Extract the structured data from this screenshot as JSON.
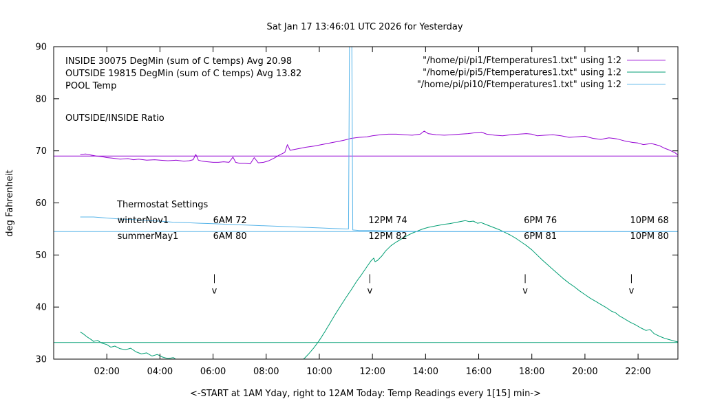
{
  "chart_data": {
    "type": "line",
    "title": "Sat Jan 17 13:46:01 UTC 2026 for Yesterday",
    "xlabel": "<-START at 1AM Yday, right to 12AM Today:  Temp Readings every 1[15] min->",
    "ylabel": "deg Fahrenheit",
    "xlim": [
      0,
      23.5
    ],
    "ylim": [
      30,
      90
    ],
    "grid": false,
    "legend_position": "top-right",
    "xticks": [
      {
        "v": 2,
        "label": "02:00"
      },
      {
        "v": 4,
        "label": "04:00"
      },
      {
        "v": 6,
        "label": "06:00"
      },
      {
        "v": 8,
        "label": "08:00"
      },
      {
        "v": 10,
        "label": "10:00"
      },
      {
        "v": 12,
        "label": "12:00"
      },
      {
        "v": 14,
        "label": "14:00"
      },
      {
        "v": 16,
        "label": "16:00"
      },
      {
        "v": 18,
        "label": "18:00"
      },
      {
        "v": 20,
        "label": "20:00"
      },
      {
        "v": 22,
        "label": "22:00"
      }
    ],
    "yticks": [
      30,
      40,
      50,
      60,
      70,
      80,
      90
    ],
    "colors": {
      "inside": "#9400d3",
      "outside": "#009e73",
      "pool": "#56b4e9",
      "text": "#000000"
    },
    "info_labels": {
      "inside": "INSIDE 30075 DegMin (sum of C temps) Avg 20.98",
      "outside": "OUTSIDE 19815 DegMin (sum of C temps) Avg 13.82",
      "pool": "POOL Temp",
      "ratio": "OUTSIDE/INSIDE Ratio"
    },
    "legend": [
      {
        "label": "\"/home/pi/pi1/Ftemperatures1.txt\" using 1:2",
        "color": "#9400d3"
      },
      {
        "label": "\"/home/pi/pi5/Ftemperatures1.txt\" using 1:2",
        "color": "#009e73"
      },
      {
        "label": "\"/home/pi/pi10/Ftemperatures1.txt\" using 1:2",
        "color": "#56b4e9"
      }
    ],
    "thermostat": {
      "heading": "Thermostat Settings",
      "rows": [
        {
          "name": "winterNov1",
          "y": 56.7,
          "cells": [
            "6AM 72",
            "12PM 74",
            "6PM 76",
            "10PM 68"
          ]
        },
        {
          "name": "summerMay1",
          "y": 53.7,
          "cells": [
            "6AM 80",
            "12PM 82",
            "6PM 81",
            "10PM 80"
          ]
        }
      ],
      "name_x": 2.4,
      "col_x": [
        6.0,
        11.85,
        17.7,
        21.7
      ]
    },
    "arrow_x": [
      6.05,
      11.9,
      17.75,
      21.75
    ],
    "series": [
      {
        "name": "INSIDE",
        "color": "#9400d3",
        "points": [
          [
            1.0,
            69.3
          ],
          [
            1.2,
            69.4
          ],
          [
            1.4,
            69.2
          ],
          [
            1.6,
            69.0
          ],
          [
            1.8,
            68.9
          ],
          [
            2.0,
            68.7
          ],
          [
            2.2,
            68.6
          ],
          [
            2.5,
            68.4
          ],
          [
            2.8,
            68.5
          ],
          [
            3.0,
            68.3
          ],
          [
            3.2,
            68.4
          ],
          [
            3.5,
            68.2
          ],
          [
            3.8,
            68.3
          ],
          [
            4.0,
            68.2
          ],
          [
            4.3,
            68.1
          ],
          [
            4.6,
            68.2
          ],
          [
            4.9,
            68.0
          ],
          [
            5.1,
            68.1
          ],
          [
            5.25,
            68.3
          ],
          [
            5.35,
            69.3
          ],
          [
            5.45,
            68.2
          ],
          [
            5.6,
            68.0
          ],
          [
            5.8,
            67.9
          ],
          [
            6.0,
            67.8
          ],
          [
            6.2,
            67.8
          ],
          [
            6.4,
            67.9
          ],
          [
            6.6,
            67.8
          ],
          [
            6.75,
            68.8
          ],
          [
            6.85,
            67.8
          ],
          [
            7.0,
            67.6
          ],
          [
            7.2,
            67.6
          ],
          [
            7.4,
            67.5
          ],
          [
            7.55,
            68.7
          ],
          [
            7.7,
            67.7
          ],
          [
            7.9,
            67.8
          ],
          [
            8.1,
            68.1
          ],
          [
            8.3,
            68.6
          ],
          [
            8.5,
            69.2
          ],
          [
            8.7,
            69.7
          ],
          [
            8.8,
            71.2
          ],
          [
            8.9,
            70.1
          ],
          [
            9.1,
            70.3
          ],
          [
            9.3,
            70.5
          ],
          [
            9.5,
            70.7
          ],
          [
            9.8,
            70.9
          ],
          [
            10.0,
            71.1
          ],
          [
            10.3,
            71.4
          ],
          [
            10.6,
            71.7
          ],
          [
            10.9,
            72.0
          ],
          [
            11.2,
            72.4
          ],
          [
            11.5,
            72.6
          ],
          [
            11.8,
            72.7
          ],
          [
            12.0,
            72.9
          ],
          [
            12.3,
            73.1
          ],
          [
            12.6,
            73.2
          ],
          [
            12.9,
            73.2
          ],
          [
            13.2,
            73.1
          ],
          [
            13.5,
            73.0
          ],
          [
            13.8,
            73.2
          ],
          [
            13.95,
            73.8
          ],
          [
            14.1,
            73.3
          ],
          [
            14.4,
            73.1
          ],
          [
            14.7,
            73.0
          ],
          [
            15.0,
            73.1
          ],
          [
            15.3,
            73.2
          ],
          [
            15.6,
            73.3
          ],
          [
            15.9,
            73.5
          ],
          [
            16.1,
            73.6
          ],
          [
            16.3,
            73.2
          ],
          [
            16.6,
            73.0
          ],
          [
            16.9,
            72.9
          ],
          [
            17.2,
            73.1
          ],
          [
            17.5,
            73.2
          ],
          [
            17.8,
            73.3
          ],
          [
            18.0,
            73.2
          ],
          [
            18.2,
            72.9
          ],
          [
            18.5,
            73.0
          ],
          [
            18.8,
            73.1
          ],
          [
            19.1,
            72.9
          ],
          [
            19.4,
            72.6
          ],
          [
            19.7,
            72.7
          ],
          [
            20.0,
            72.8
          ],
          [
            20.3,
            72.4
          ],
          [
            20.6,
            72.2
          ],
          [
            20.9,
            72.5
          ],
          [
            21.2,
            72.3
          ],
          [
            21.5,
            71.9
          ],
          [
            21.8,
            71.6
          ],
          [
            22.0,
            71.5
          ],
          [
            22.2,
            71.2
          ],
          [
            22.5,
            71.4
          ],
          [
            22.8,
            71.0
          ],
          [
            23.0,
            70.5
          ],
          [
            23.2,
            70.1
          ],
          [
            23.4,
            69.6
          ],
          [
            23.5,
            69.2
          ]
        ]
      },
      {
        "name": "OUTSIDE",
        "color": "#009e73",
        "points": [
          [
            1.0,
            35.2
          ],
          [
            1.1,
            34.9
          ],
          [
            1.25,
            34.3
          ],
          [
            1.4,
            33.8
          ],
          [
            1.5,
            33.4
          ],
          [
            1.65,
            33.6
          ],
          [
            1.8,
            33.1
          ],
          [
            2.0,
            32.8
          ],
          [
            2.15,
            32.3
          ],
          [
            2.3,
            32.5
          ],
          [
            2.5,
            32.0
          ],
          [
            2.7,
            31.8
          ],
          [
            2.9,
            32.1
          ],
          [
            3.1,
            31.4
          ],
          [
            3.3,
            31.0
          ],
          [
            3.5,
            31.2
          ],
          [
            3.7,
            30.6
          ],
          [
            3.9,
            30.9
          ],
          [
            4.1,
            30.4
          ],
          [
            4.3,
            30.1
          ],
          [
            4.5,
            30.3
          ],
          [
            4.65,
            29.8
          ],
          [
            4.8,
            29.5
          ],
          [
            5.0,
            29.7
          ],
          [
            5.3,
            29.1
          ],
          [
            5.7,
            28.7
          ],
          [
            6.2,
            28.4
          ],
          [
            6.8,
            28.1
          ],
          [
            7.4,
            28.0
          ],
          [
            8.0,
            28.3
          ],
          [
            8.6,
            28.6
          ],
          [
            9.0,
            29.0
          ],
          [
            9.3,
            29.6
          ],
          [
            9.45,
            30.2
          ],
          [
            9.6,
            31.0
          ],
          [
            9.8,
            32.2
          ],
          [
            10.0,
            33.6
          ],
          [
            10.2,
            35.2
          ],
          [
            10.4,
            36.9
          ],
          [
            10.6,
            38.6
          ],
          [
            10.8,
            40.2
          ],
          [
            11.0,
            41.8
          ],
          [
            11.2,
            43.3
          ],
          [
            11.4,
            44.9
          ],
          [
            11.6,
            46.3
          ],
          [
            11.8,
            47.8
          ],
          [
            11.95,
            48.9
          ],
          [
            12.05,
            49.4
          ],
          [
            12.1,
            48.7
          ],
          [
            12.2,
            49.0
          ],
          [
            12.35,
            49.8
          ],
          [
            12.5,
            50.8
          ],
          [
            12.7,
            51.8
          ],
          [
            12.9,
            52.5
          ],
          [
            13.1,
            53.1
          ],
          [
            13.3,
            53.7
          ],
          [
            13.5,
            54.2
          ],
          [
            13.7,
            54.6
          ],
          [
            13.9,
            55.0
          ],
          [
            14.1,
            55.3
          ],
          [
            14.3,
            55.5
          ],
          [
            14.5,
            55.7
          ],
          [
            14.7,
            55.9
          ],
          [
            14.9,
            56.0
          ],
          [
            15.1,
            56.2
          ],
          [
            15.3,
            56.4
          ],
          [
            15.5,
            56.6
          ],
          [
            15.65,
            56.4
          ],
          [
            15.8,
            56.5
          ],
          [
            15.95,
            56.1
          ],
          [
            16.1,
            56.2
          ],
          [
            16.25,
            55.9
          ],
          [
            16.4,
            55.6
          ],
          [
            16.6,
            55.2
          ],
          [
            16.8,
            54.8
          ],
          [
            17.0,
            54.3
          ],
          [
            17.2,
            53.8
          ],
          [
            17.4,
            53.2
          ],
          [
            17.6,
            52.5
          ],
          [
            17.8,
            51.8
          ],
          [
            18.0,
            51.0
          ],
          [
            18.2,
            50.0
          ],
          [
            18.4,
            49.0
          ],
          [
            18.6,
            48.1
          ],
          [
            18.8,
            47.2
          ],
          [
            19.0,
            46.3
          ],
          [
            19.2,
            45.4
          ],
          [
            19.4,
            44.6
          ],
          [
            19.6,
            43.9
          ],
          [
            19.8,
            43.1
          ],
          [
            20.0,
            42.4
          ],
          [
            20.2,
            41.7
          ],
          [
            20.4,
            41.1
          ],
          [
            20.6,
            40.5
          ],
          [
            20.8,
            39.9
          ],
          [
            21.0,
            39.2
          ],
          [
            21.15,
            38.9
          ],
          [
            21.3,
            38.3
          ],
          [
            21.5,
            37.7
          ],
          [
            21.7,
            37.1
          ],
          [
            21.9,
            36.6
          ],
          [
            22.1,
            36.0
          ],
          [
            22.3,
            35.5
          ],
          [
            22.45,
            35.7
          ],
          [
            22.6,
            34.9
          ],
          [
            22.8,
            34.4
          ],
          [
            23.0,
            34.0
          ],
          [
            23.2,
            33.7
          ],
          [
            23.35,
            33.5
          ],
          [
            23.5,
            33.3
          ]
        ]
      },
      {
        "name": "POOL",
        "color": "#56b4e9",
        "points": [
          [
            1.0,
            57.3
          ],
          [
            1.5,
            57.3
          ],
          [
            2.0,
            57.1
          ],
          [
            2.5,
            56.9
          ],
          [
            3.0,
            56.8
          ],
          [
            3.5,
            56.6
          ],
          [
            4.0,
            56.5
          ],
          [
            4.5,
            56.3
          ],
          [
            5.0,
            56.2
          ],
          [
            5.5,
            56.1
          ],
          [
            6.0,
            56.0
          ],
          [
            6.5,
            55.9
          ],
          [
            7.0,
            55.8
          ],
          [
            7.5,
            55.7
          ],
          [
            8.0,
            55.6
          ],
          [
            8.5,
            55.5
          ],
          [
            9.0,
            55.4
          ],
          [
            9.5,
            55.3
          ],
          [
            10.0,
            55.2
          ],
          [
            10.5,
            55.1
          ],
          [
            11.0,
            55.0
          ],
          [
            11.1,
            55.0
          ],
          [
            11.14,
            95.0
          ],
          [
            11.22,
            95.0
          ],
          [
            11.26,
            54.8
          ],
          [
            11.5,
            54.7
          ],
          [
            12.0,
            54.7
          ],
          [
            12.5,
            54.6
          ],
          [
            13.0,
            54.6
          ],
          [
            14.0,
            54.5
          ],
          [
            15.0,
            54.5
          ],
          [
            16.0,
            54.5
          ],
          [
            17.0,
            54.5
          ],
          [
            18.0,
            54.5
          ],
          [
            19.0,
            54.5
          ],
          [
            20.0,
            54.5
          ],
          [
            21.0,
            54.5
          ],
          [
            22.0,
            54.5
          ],
          [
            23.0,
            54.5
          ],
          [
            23.5,
            54.5
          ]
        ]
      }
    ],
    "ref_lines": [
      {
        "name": "inside-ref",
        "color": "#9400d3",
        "y": 69.0
      },
      {
        "name": "outside-ref",
        "color": "#009e73",
        "y": 33.2
      },
      {
        "name": "pool-ref",
        "color": "#56b4e9",
        "y": 54.5
      }
    ]
  }
}
